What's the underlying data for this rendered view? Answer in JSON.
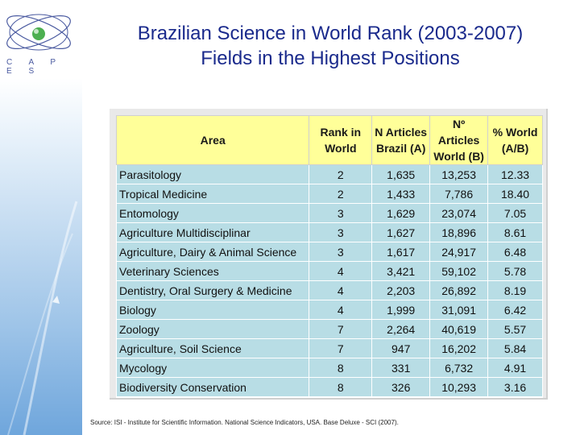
{
  "logo": {
    "text": "C A P E S"
  },
  "title": {
    "line1": "Brazilian Science in World Rank (2003-2007)",
    "line2": "Fields in the Highest Positions"
  },
  "table": {
    "headers": [
      {
        "line1": "Area",
        "line2": ""
      },
      {
        "line1": "Rank in",
        "line2": "World"
      },
      {
        "line1": "N Articles",
        "line2": "Brazil (A)"
      },
      {
        "line1": "Nº Articles",
        "line2": "World (B)"
      },
      {
        "line1": "% World",
        "line2": "(A/B)"
      }
    ],
    "rows": [
      {
        "area": "Parasitology",
        "rank": "2",
        "brazil": "1,635",
        "world": "13,253",
        "pct": "12.33"
      },
      {
        "area": "Tropical Medicine",
        "rank": "2",
        "brazil": "1,433",
        "world": "7,786",
        "pct": "18.40"
      },
      {
        "area": "Entomology",
        "rank": "3",
        "brazil": "1,629",
        "world": "23,074",
        "pct": "7.05"
      },
      {
        "area": "Agriculture Multidisciplinar",
        "rank": "3",
        "brazil": "1,627",
        "world": "18,896",
        "pct": "8.61"
      },
      {
        "area": "Agriculture, Dairy  & Animal Science",
        "rank": "3",
        "brazil": "1,617",
        "world": "24,917",
        "pct": "6.48"
      },
      {
        "area": "Veterinary Sciences",
        "rank": "4",
        "brazil": "3,421",
        "world": "59,102",
        "pct": "5.78"
      },
      {
        "area": "Dentistry, Oral Surgery & Medicine",
        "rank": "4",
        "brazil": "2,203",
        "world": "26,892",
        "pct": "8.19"
      },
      {
        "area": "Biology",
        "rank": "4",
        "brazil": "1,999",
        "world": "31,091",
        "pct": "6.42"
      },
      {
        "area": "Zoology",
        "rank": "7",
        "brazil": "2,264",
        "world": "40,619",
        "pct": "5.57"
      },
      {
        "area": "Agriculture, Soil Science",
        "rank": "7",
        "brazil": "947",
        "world": "16,202",
        "pct": "5.84"
      },
      {
        "area": "Mycology",
        "rank": "8",
        "brazil": "331",
        "world": "6,732",
        "pct": "4.91"
      },
      {
        "area": "Biodiversity Conservation",
        "rank": "8",
        "brazil": "326",
        "world": "10,293",
        "pct": "3.16"
      }
    ]
  },
  "source": "Source: ISI - Institute for Scientific Information. National Science Indicators, USA. Base Deluxe - SCI (2007)."
}
